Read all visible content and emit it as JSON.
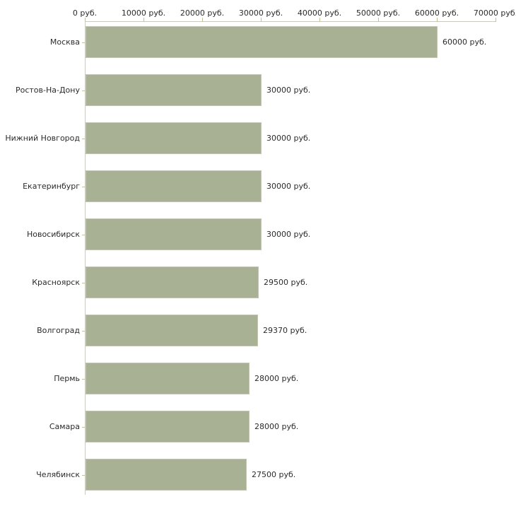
{
  "chart": {
    "background_color": "#ffffff",
    "bar_color": "#a9b195",
    "bar_border_color": "#c2c7ad",
    "axis_line_color": "#cbcbc3",
    "tick_color": "#c2c19c",
    "text_color": "#2b2b2b"
  },
  "chart_data": {
    "type": "bar",
    "orientation": "horizontal",
    "title": "",
    "xlabel": "",
    "ylabel": "",
    "categories": [
      "Москва",
      "Ростов-На-Дону",
      "Нижний Новгород",
      "Екатеринбург",
      "Новосибирск",
      "Красноярск",
      "Волгоград",
      "Пермь",
      "Самара",
      "Челябинск"
    ],
    "values": [
      60000,
      30000,
      30000,
      30000,
      30000,
      29500,
      29370,
      28000,
      28000,
      27500
    ],
    "value_labels": [
      "60000 руб.",
      "30000 руб.",
      "30000 руб.",
      "30000 руб.",
      "30000 руб.",
      "29500 руб.",
      "29370 руб.",
      "28000 руб.",
      "28000 руб.",
      "27500 руб."
    ],
    "x_axis": {
      "position": "top",
      "range": [
        0,
        70000
      ],
      "unit": "руб.",
      "tick_values": [
        0,
        10000,
        20000,
        30000,
        40000,
        50000,
        60000,
        70000
      ],
      "tick_labels": [
        "0 руб.",
        "10000 руб.",
        "20000 руб.",
        "30000 руб.",
        "40000 руб.",
        "50000 руб.",
        "60000 руб.",
        "70000 руб."
      ]
    },
    "grid": false,
    "legend": false
  }
}
